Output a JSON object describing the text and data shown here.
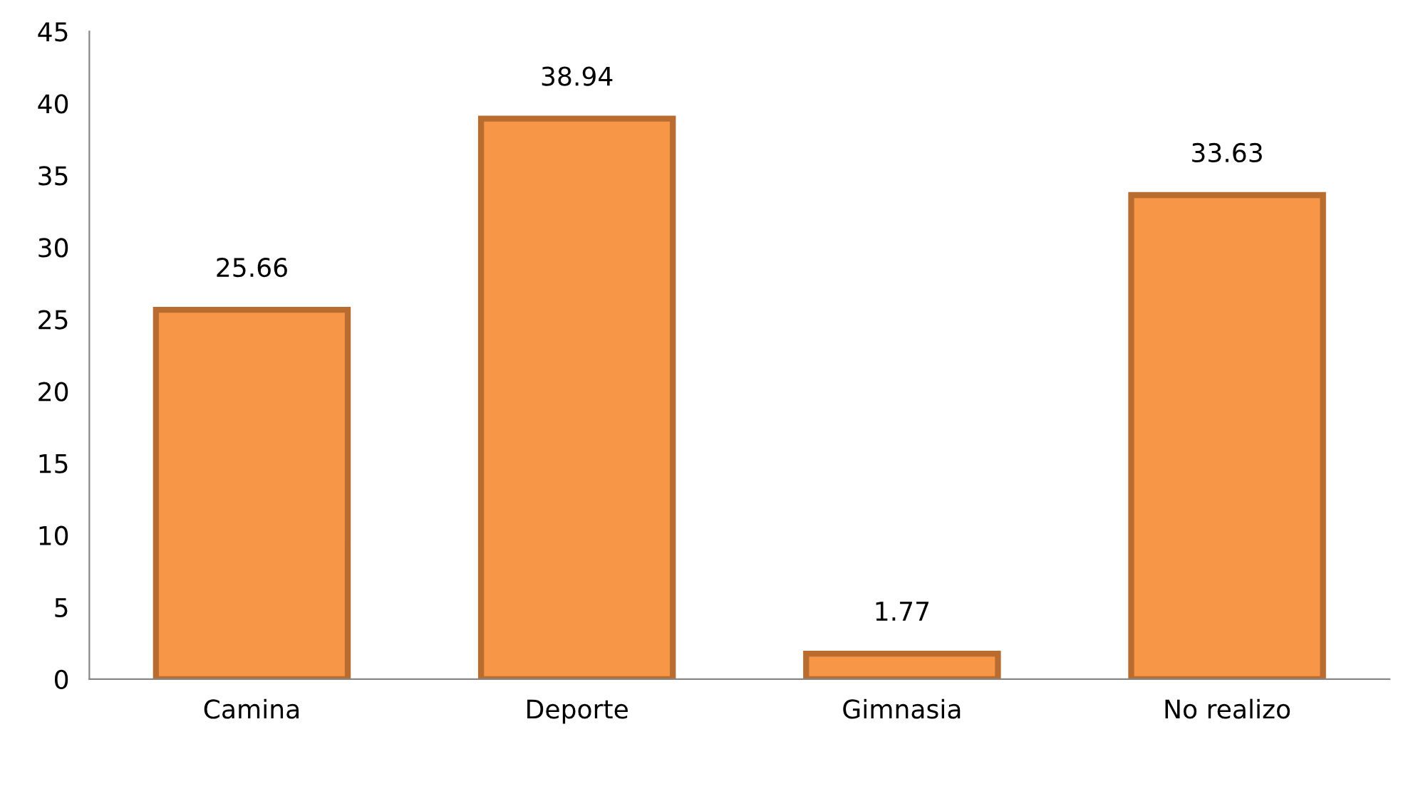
{
  "chart_data": {
    "type": "bar",
    "categories": [
      "Camina",
      "Deporte",
      "Gimnasia",
      "No realizo"
    ],
    "values": [
      25.66,
      38.94,
      1.77,
      33.63
    ],
    "color": "#f79646",
    "ylim": [
      0,
      45
    ],
    "yticks": [
      0,
      5,
      10,
      15,
      20,
      25,
      30,
      35,
      40,
      45
    ],
    "grid": false,
    "data_labels": true
  }
}
